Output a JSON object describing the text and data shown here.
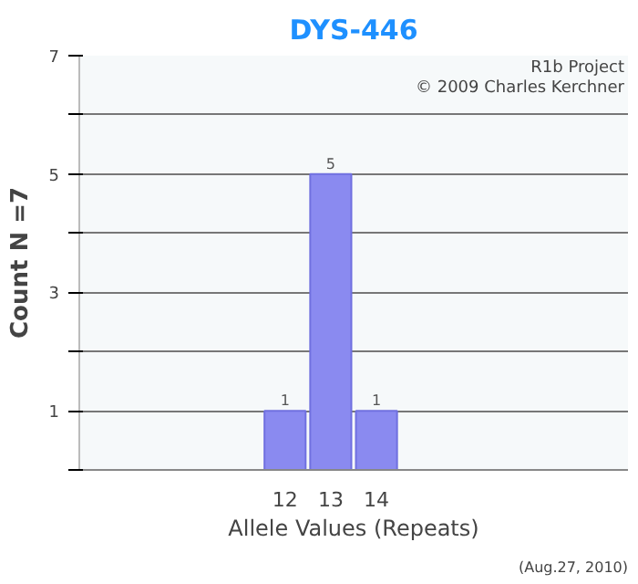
{
  "chart_data": {
    "type": "bar",
    "title": "DYS-446",
    "xlabel": "Allele Values (Repeats)",
    "ylabel": "Count N =7",
    "categories": [
      null,
      null,
      null,
      null,
      "12",
      "13",
      "14",
      null,
      null,
      null,
      null,
      null
    ],
    "values": [
      null,
      null,
      null,
      null,
      1,
      5,
      1,
      null,
      null,
      null,
      null,
      null
    ],
    "color": "#8a8af0",
    "data_labels": true,
    "ylim": [
      0,
      7
    ],
    "yticks": [
      {
        "value": 0,
        "label": null
      },
      1,
      {
        "value": 2,
        "label": null
      },
      3,
      {
        "value": 4,
        "label": null
      },
      5,
      {
        "value": 6,
        "label": null
      },
      7
    ],
    "grid": "y",
    "annotations": [
      "R1b Project",
      "© 2009 Charles Kerchner",
      "(Aug.27, 2010)"
    ]
  }
}
